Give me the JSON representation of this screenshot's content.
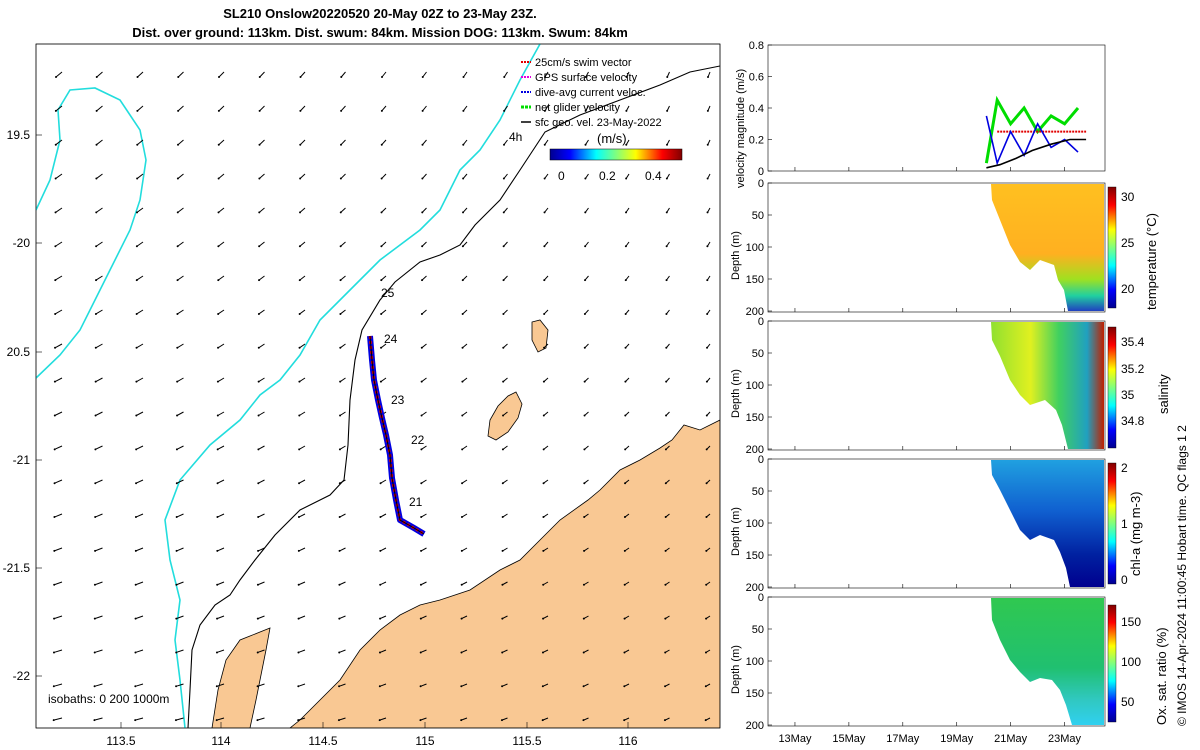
{
  "title": {
    "line1": "SL210 Onslow20220520 20-May 02Z to 23-May 23Z.",
    "line2": "Dist. over ground: 113km. Dist. swum: 84km. Mission DOG: 113km. Swum: 84km"
  },
  "map": {
    "lon_ticks": [
      "113.5",
      "114",
      "114.5",
      "115",
      "115.5",
      "116"
    ],
    "lat_ticks": [
      "19.5",
      "-20",
      "20.5",
      "-21",
      "-21.5",
      "-22"
    ],
    "legend": [
      {
        "label": "25cm/s swim vector",
        "color": "#e00000"
      },
      {
        "label": "GPS surface velocity",
        "color": "#e000e0"
      },
      {
        "label": "dive-avg current veloc.",
        "color": "#0000e0"
      },
      {
        "label": "net glider velocity",
        "color": "#00dd00"
      },
      {
        "label": "sfc geo. vel. 23-May-2022",
        "color": "#000000"
      }
    ],
    "colorbar_title": "(m/s)",
    "colorbar_ticks": [
      "0",
      "0.2",
      "0.4"
    ],
    "scale_label": "4h",
    "isobaths_label": "isobaths: 0   200  1000m",
    "day_labels": [
      "25",
      "24",
      "23",
      "22",
      "21"
    ],
    "land_color": "#f9c893",
    "isobath_1000_color": "#22dddd"
  },
  "velocity_panel": {
    "ylabel": "velocity magnitude (m/s)",
    "yticks": [
      "0.8",
      "0.6",
      "0.4",
      "0.2",
      "0"
    ]
  },
  "profile_panels": [
    {
      "ylabel": "Depth (m)",
      "cbar_label": "temperature (°C)",
      "cbar_ticks": [
        "30",
        "25",
        "20"
      ],
      "yticks": [
        "0",
        "50",
        "100",
        "150",
        "200"
      ]
    },
    {
      "ylabel": "Depth (m)",
      "cbar_label": "salinity",
      "cbar_ticks": [
        "35.4",
        "35.2",
        "35",
        "34.8"
      ],
      "yticks": [
        "0",
        "50",
        "100",
        "150",
        "200"
      ]
    },
    {
      "ylabel": "Depth (m)",
      "cbar_label": "chl-a (mg m-3)",
      "cbar_ticks": [
        "2",
        "1",
        "0"
      ],
      "yticks": [
        "0",
        "50",
        "100",
        "150",
        "200"
      ]
    },
    {
      "ylabel": "Depth (m)",
      "cbar_label": "Ox. sat. ratio (%)",
      "cbar_ticks": [
        "150",
        "100",
        "50"
      ],
      "yticks": [
        "0",
        "50",
        "100",
        "150",
        "200"
      ]
    }
  ],
  "time_ticks": [
    "13May",
    "15May",
    "17May",
    "19May",
    "21May",
    "23May"
  ],
  "footer_note": "© IMOS 14-Apr-2024 11:00:45 Hobart time. QC flags 1  2",
  "chart_data": [
    {
      "type": "line",
      "title": "",
      "ylabel": "velocity magnitude (m/s)",
      "ylim": [
        0,
        0.8
      ],
      "x_ticks": [
        "13May",
        "15May",
        "17May",
        "19May",
        "21May",
        "23May"
      ],
      "series": [
        {
          "name": "net glider velocity",
          "color": "#00dd00",
          "x": [
            20.1,
            20.5,
            21.0,
            21.5,
            22.0,
            22.5,
            23.0,
            23.5
          ],
          "y": [
            0.05,
            0.45,
            0.3,
            0.4,
            0.25,
            0.35,
            0.3,
            0.4
          ]
        },
        {
          "name": "25cm/s swim vector",
          "color": "#e00000",
          "x": [
            20.5,
            23.8
          ],
          "y": [
            0.25,
            0.25
          ]
        },
        {
          "name": "dive-avg current veloc.",
          "color": "#0000e0",
          "x": [
            20.1,
            20.5,
            21.0,
            21.5,
            22.0,
            22.5,
            23.0,
            23.5
          ],
          "y": [
            0.35,
            0.05,
            0.25,
            0.1,
            0.3,
            0.15,
            0.2,
            0.12
          ]
        },
        {
          "name": "sfc geo. vel. 23-May-2022",
          "color": "#000000",
          "x": [
            20.1,
            20.6,
            21.2,
            21.8,
            22.5,
            23.2,
            23.8
          ],
          "y": [
            0.02,
            0.04,
            0.08,
            0.13,
            0.17,
            0.2,
            0.2
          ]
        }
      ]
    }
  ]
}
